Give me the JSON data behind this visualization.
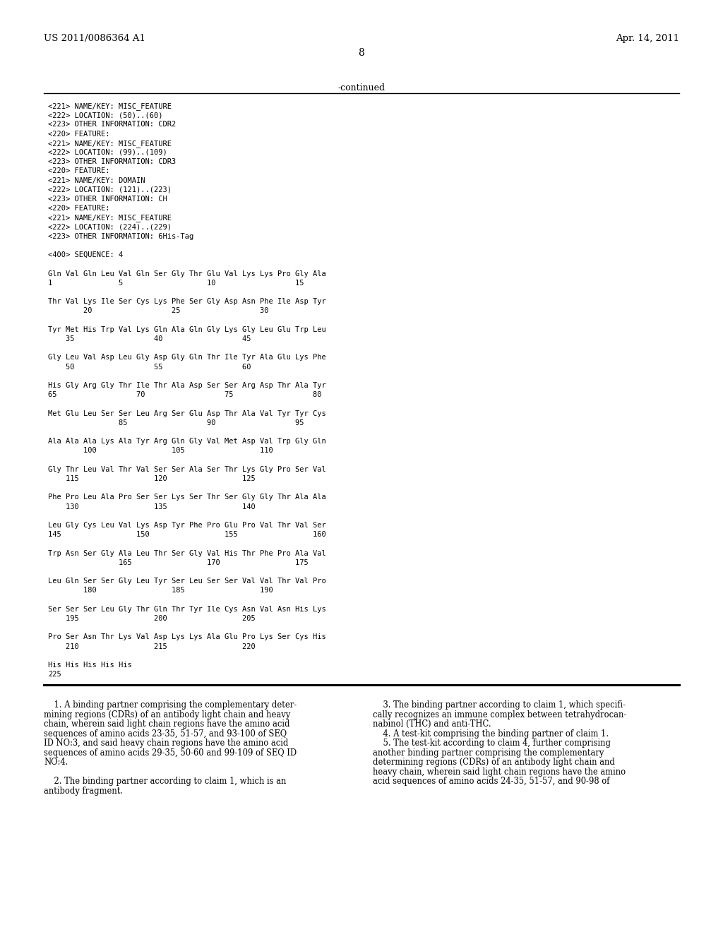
{
  "bg_color": "#ffffff",
  "header_left": "US 2011/0086364 A1",
  "header_right": "Apr. 14, 2011",
  "page_number": "8",
  "continued_text": "-continued",
  "monospace_lines": [
    "<221> NAME/KEY: MISC_FEATURE",
    "<222> LOCATION: (50)..(60)",
    "<223> OTHER INFORMATION: CDR2",
    "<220> FEATURE:",
    "<221> NAME/KEY: MISC_FEATURE",
    "<222> LOCATION: (99)..(109)",
    "<223> OTHER INFORMATION: CDR3",
    "<220> FEATURE:",
    "<221> NAME/KEY: DOMAIN",
    "<222> LOCATION: (121)..(223)",
    "<223> OTHER INFORMATION: CH",
    "<220> FEATURE:",
    "<221> NAME/KEY: MISC_FEATURE",
    "<222> LOCATION: (224)..(229)",
    "<223> OTHER INFORMATION: 6His-Tag",
    "",
    "<400> SEQUENCE: 4",
    "",
    "Gln Val Gln Leu Val Gln Ser Gly Thr Glu Val Lys Lys Pro Gly Ala",
    "1               5                   10                  15",
    "",
    "Thr Val Lys Ile Ser Cys Lys Phe Ser Gly Asp Asn Phe Ile Asp Tyr",
    "        20                  25                  30",
    "",
    "Tyr Met His Trp Val Lys Gln Ala Gln Gly Lys Gly Leu Glu Trp Leu",
    "    35                  40                  45",
    "",
    "Gly Leu Val Asp Leu Gly Asp Gly Gln Thr Ile Tyr Ala Glu Lys Phe",
    "    50                  55                  60",
    "",
    "His Gly Arg Gly Thr Ile Thr Ala Asp Ser Ser Arg Asp Thr Ala Tyr",
    "65                  70                  75                  80",
    "",
    "Met Glu Leu Ser Ser Leu Arg Ser Glu Asp Thr Ala Val Tyr Tyr Cys",
    "                85                  90                  95",
    "",
    "Ala Ala Ala Lys Ala Tyr Arg Gln Gly Val Met Asp Val Trp Gly Gln",
    "        100                 105                 110",
    "",
    "Gly Thr Leu Val Thr Val Ser Ser Ala Ser Thr Lys Gly Pro Ser Val",
    "    115                 120                 125",
    "",
    "Phe Pro Leu Ala Pro Ser Ser Lys Ser Thr Ser Gly Gly Thr Ala Ala",
    "    130                 135                 140",
    "",
    "Leu Gly Cys Leu Val Lys Asp Tyr Phe Pro Glu Pro Val Thr Val Ser",
    "145                 150                 155                 160",
    "",
    "Trp Asn Ser Gly Ala Leu Thr Ser Gly Val His Thr Phe Pro Ala Val",
    "                165                 170                 175",
    "",
    "Leu Gln Ser Ser Gly Leu Tyr Ser Leu Ser Ser Val Val Thr Val Pro",
    "        180                 185                 190",
    "",
    "Ser Ser Ser Leu Gly Thr Gln Thr Tyr Ile Cys Asn Val Asn His Lys",
    "    195                 200                 205",
    "",
    "Pro Ser Asn Thr Lys Val Asp Lys Lys Ala Glu Pro Lys Ser Cys His",
    "    210                 215                 220",
    "",
    "His His His His His",
    "225"
  ],
  "claims_col1": [
    "    1. A binding partner comprising the complementary deter-",
    "mining regions (CDRs) of an antibody light chain and heavy",
    "chain, wherein said light chain regions have the amino acid",
    "sequences of amino acids 23-35, 51-57, and 93-100 of SEQ",
    "ID NO:3, and said heavy chain regions have the amino acid",
    "sequences of amino acids 29-35, 50-60 and 99-109 of SEQ ID",
    "NO:4.",
    "",
    "    2. The binding partner according to claim 1, which is an",
    "antibody fragment."
  ],
  "claims_col2": [
    "    3. The binding partner according to claim 1, which specifi-",
    "cally recognizes an immune complex between tetrahydrocan-",
    "nabinol (THC) and anti-THC.",
    "    4. A test-kit comprising the binding partner of claim 1.",
    "    5. The test-kit according to claim 4, further comprising",
    "another binding partner comprising the complementary",
    "determining regions (CDRs) of an antibody light chain and",
    "heavy chain, wherein said light chain regions have the amino",
    "acid sequences of amino acids 24-35, 51-57, and 90-98 of"
  ]
}
